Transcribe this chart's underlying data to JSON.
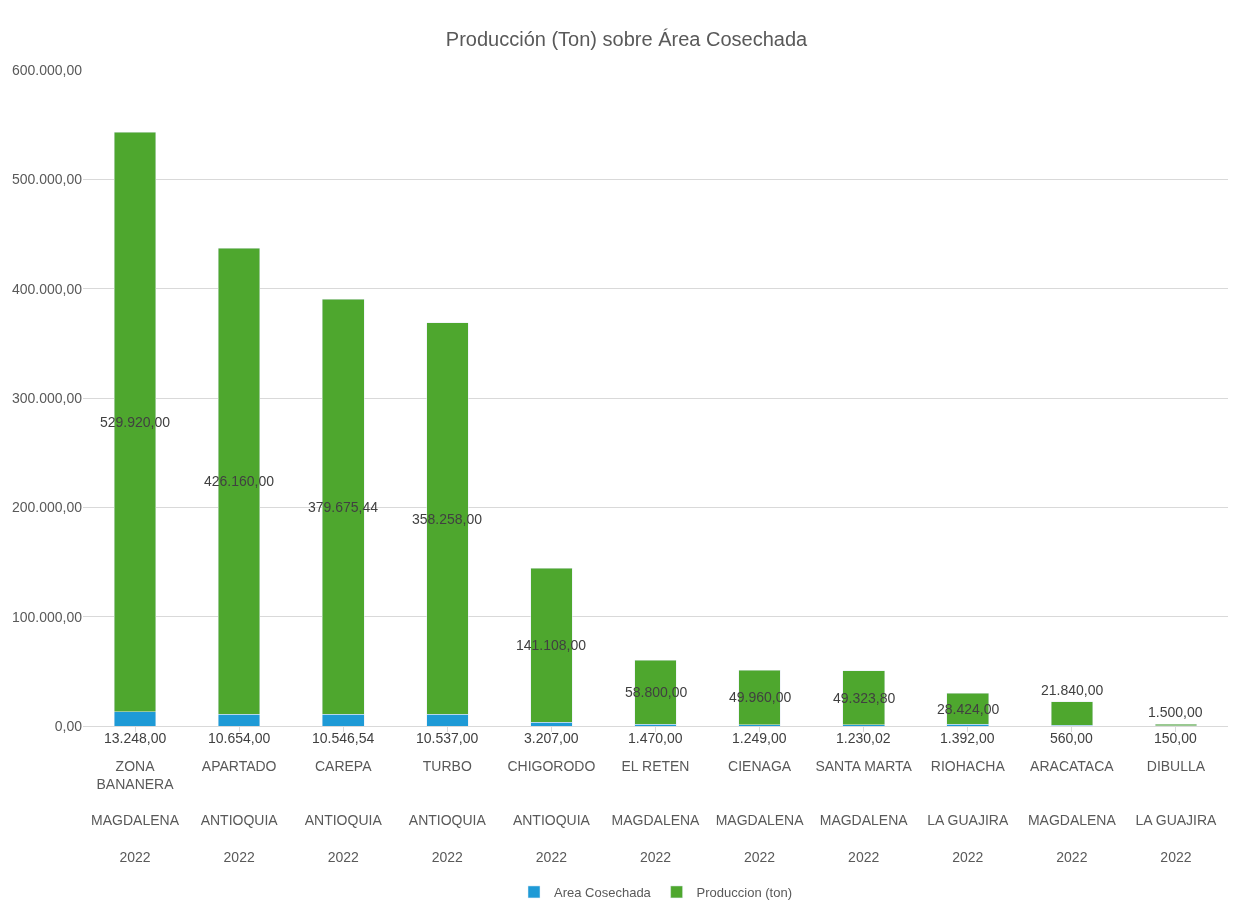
{
  "chart_data": {
    "type": "bar",
    "title": "Producción (Ton) sobre Área Cosechada",
    "stacked": true,
    "legend": "bottom",
    "grid": "y",
    "categories": [
      "ZONA\nBANANERA\n\nMAGDALENA\n\n2022",
      "APARTADO\n\n\nANTIOQUIA\n\n2022",
      "CAREPA\n\n\nANTIOQUIA\n\n2022",
      "TURBO\n\n\nANTIOQUIA\n\n2022",
      "CHIGORODO\n\n\nANTIOQUIA\n\n2022",
      "EL RETEN\n\n\nMAGDALENA\n\n2022",
      "CIENAGA\n\n\nMAGDALENA\n\n2022",
      "SANTA MARTA\n\n\nMAGDALENA\n\n2022",
      "RIOHACHA\n\n\nLA GUAJIRA\n\n2022",
      "ARACATACA\n\n\nMAGDALENA\n\n2022",
      "DIBULLA\n\n\nLA GUAJIRA\n\n2022"
    ],
    "series": [
      {
        "name": "Area Cosechada",
        "color": "#1e9ad6",
        "values": [
          13248,
          10654,
          10546.54,
          10537,
          3207,
          1470,
          1249,
          1230.02,
          1392,
          560,
          150
        ],
        "value_labels": [
          "13.248,00",
          "10.654,00",
          "10.546,54",
          "10.537,00",
          "3.207,00",
          "1.470,00",
          "1.249,00",
          "1.230,02",
          "1.392,00",
          "560,00",
          "150,00"
        ]
      },
      {
        "name": "Produccion (ton)",
        "color": "#4ea72e",
        "values": [
          529920,
          426160,
          379675.44,
          358258,
          141108,
          58800,
          49960,
          49323.8,
          28424,
          21840,
          1500
        ],
        "value_labels": [
          "529.920,00",
          "426.160,00",
          "379.675,44",
          "358.258,00",
          "141.108,00",
          "58.800,00",
          "49.960,00",
          "49.323,80",
          "28.424,00",
          "21.840,00",
          "1.500,00"
        ]
      }
    ],
    "ylim": [
      0,
      600000
    ],
    "yticks": [
      {
        "value": 0,
        "label": "0,00"
      },
      {
        "value": 100000,
        "label": "100.000,00"
      },
      {
        "value": 200000,
        "label": "200.000,00"
      },
      {
        "value": 300000,
        "label": "300.000,00"
      },
      {
        "value": 400000,
        "label": "400.000,00"
      },
      {
        "value": 500000,
        "label": "500.000,00"
      },
      {
        "value": 600000,
        "label": "600.000,00"
      }
    ]
  }
}
